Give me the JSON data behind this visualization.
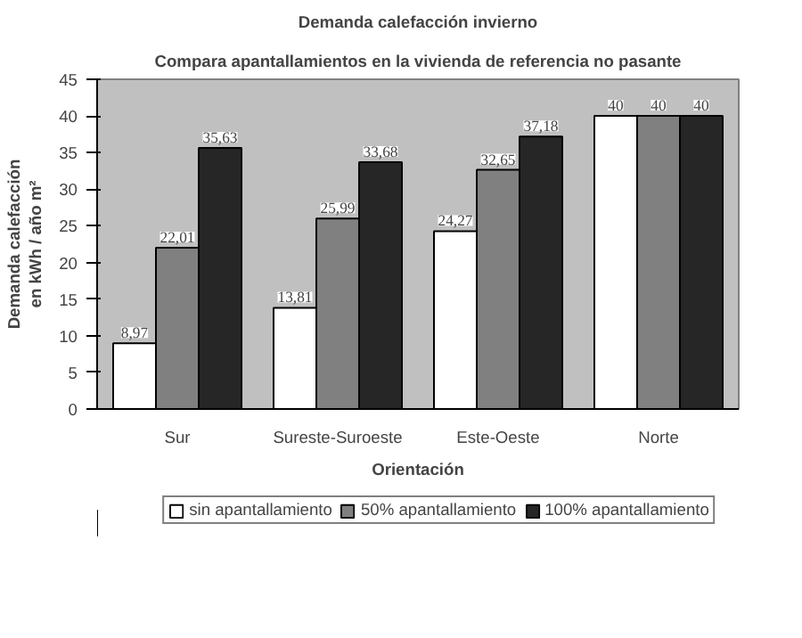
{
  "chart_data": {
    "type": "bar",
    "title": "Demanda calefacción invierno",
    "subtitle": "Compara apantallamientos en la vivienda de referencia no pasante",
    "xlabel": "Orientación",
    "ylabel": "Demanda calefacción\nen kWh / año m²",
    "categories": [
      "Sur",
      "Sureste-Suroeste",
      "Este-Oeste",
      "Norte"
    ],
    "series": [
      {
        "name": "sin apantallamiento",
        "color": "#ffffff",
        "values": [
          8.97,
          13.81,
          24.27,
          40
        ]
      },
      {
        "name": "50% apantallamiento",
        "color": "#808080",
        "values": [
          22.01,
          25.99,
          32.65,
          40
        ]
      },
      {
        "name": "100% apantallamiento",
        "color": "#262626",
        "values": [
          35.63,
          33.68,
          37.18,
          40
        ]
      }
    ],
    "value_labels": [
      [
        "8,97",
        "13,81",
        "24,27",
        "40"
      ],
      [
        "22,01",
        "25,99",
        "32,65",
        "40"
      ],
      [
        "35,63",
        "33,68",
        "37,18",
        "40"
      ]
    ],
    "ylim": [
      0,
      45
    ],
    "yticks": [
      0,
      5,
      10,
      15,
      20,
      25,
      30,
      35,
      40,
      45
    ],
    "grid": false,
    "legend": "bottom"
  }
}
